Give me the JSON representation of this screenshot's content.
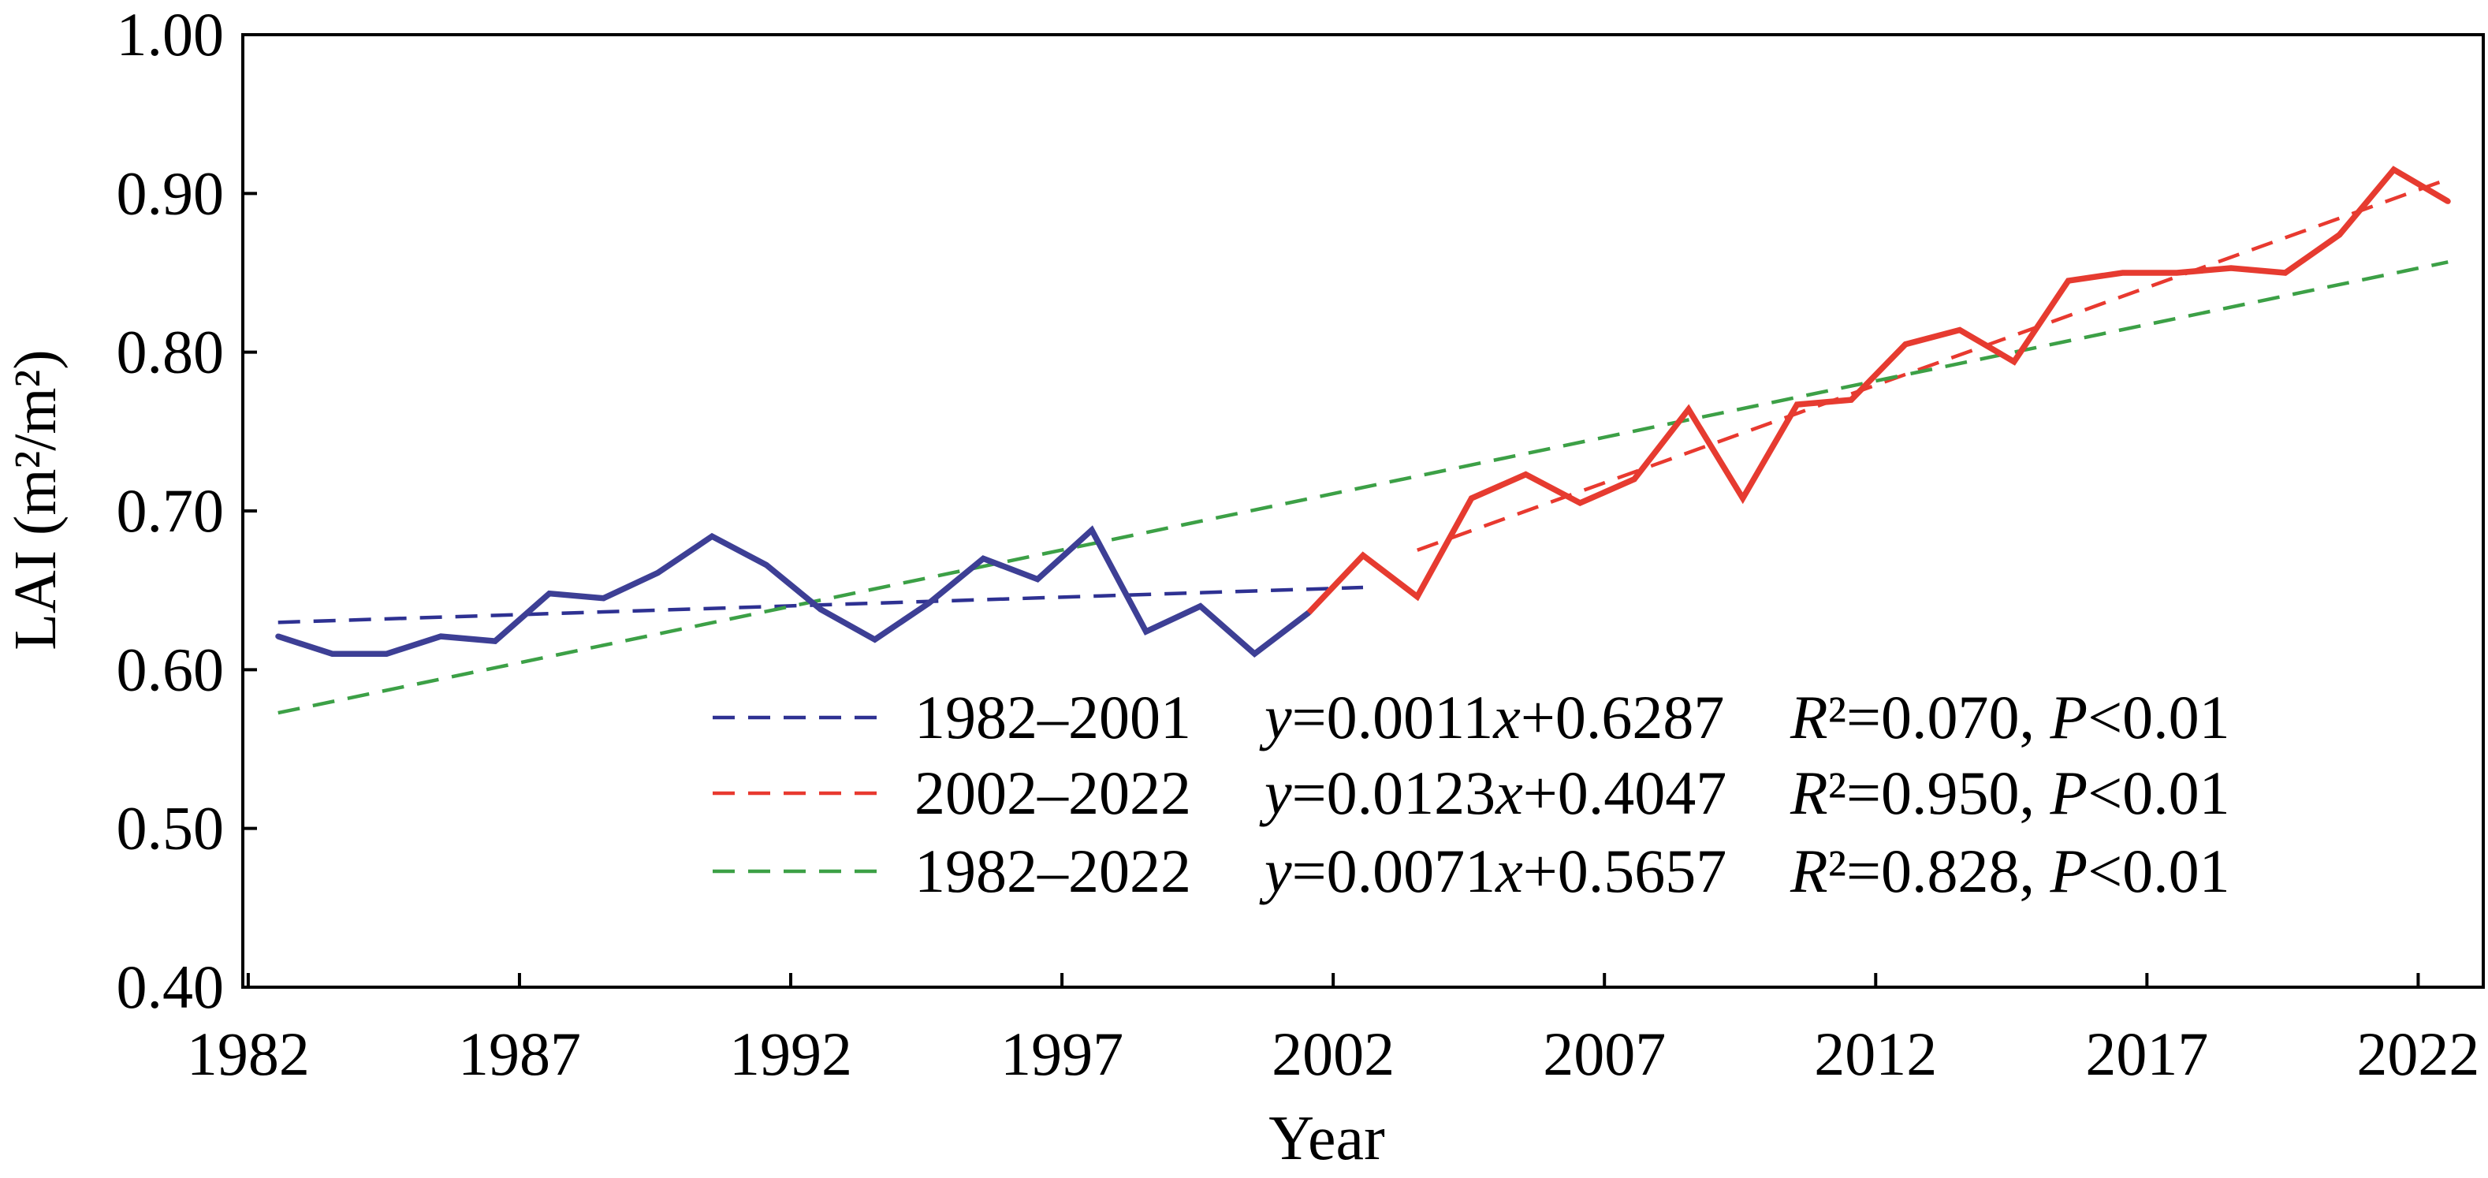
{
  "chart_data": {
    "type": "line",
    "xlabel": "Year",
    "ylabel": "LAI (m²/m²)",
    "xlim": [
      1981.9,
      2023.2
    ],
    "ylim": [
      0.4,
      1.0
    ],
    "xticks": [
      "1982",
      "1987",
      "1992",
      "1997",
      "2002",
      "2007",
      "2012",
      "2017",
      "2022"
    ],
    "yticks": [
      "0.40",
      "0.50",
      "0.60",
      "0.70",
      "0.80",
      "0.90",
      "1.00"
    ],
    "grid": false,
    "legend_position": "lower-center",
    "series": [
      {
        "color": "#3d3f95",
        "style": "solid",
        "x": [
          1982,
          1983,
          1984,
          1985,
          1986,
          1987,
          1988,
          1989,
          1990,
          1991,
          1992,
          1993,
          1994,
          1995,
          1996,
          1997,
          1998,
          1999,
          2000,
          2001
        ],
        "values": [
          0.621,
          0.61,
          0.61,
          0.621,
          0.618,
          0.648,
          0.645,
          0.661,
          0.684,
          0.666,
          0.638,
          0.619,
          0.642,
          0.67,
          0.657,
          0.688,
          0.624,
          0.64,
          0.61,
          0.636
        ]
      },
      {
        "color": "#e63b30",
        "style": "solid",
        "x": [
          2002,
          2003,
          2004,
          2005,
          2006,
          2007,
          2008,
          2009,
          2010,
          2011,
          2012,
          2013,
          2014,
          2015,
          2016,
          2017,
          2018,
          2019,
          2020,
          2021,
          2022
        ],
        "values": [
          0.672,
          0.646,
          0.708,
          0.723,
          0.705,
          0.72,
          0.764,
          0.708,
          0.767,
          0.77,
          0.805,
          0.814,
          0.794,
          0.845,
          0.85,
          0.85,
          0.853,
          0.85,
          0.874,
          0.915,
          0.895
        ]
      }
    ],
    "trend_lines": [
      {
        "name": "1982–2001",
        "equation": "y=0.0011x+0.6287",
        "stats": "R²=0.070, P<0.01",
        "slope": 0.0011,
        "intercept": 0.6287,
        "x_range": [
          1982,
          2002
        ],
        "color": "#2e3192",
        "style": "dashed"
      },
      {
        "name": "2002–2022",
        "equation": "y=0.0123x+0.4047",
        "stats": "R²=0.950, P<0.01",
        "slope": 0.0123,
        "intercept": 0.4047,
        "x_range": [
          2003,
          2022
        ],
        "color": "#e8392f",
        "style": "dashed"
      },
      {
        "name": "1982–2022",
        "equation": "y=0.0071x+0.5657",
        "stats": "R²=0.828, P<0.01",
        "slope": 0.0071,
        "intercept": 0.5657,
        "x_range": [
          1982,
          2022
        ],
        "color": "#3ca046",
        "style": "dashed"
      }
    ]
  }
}
